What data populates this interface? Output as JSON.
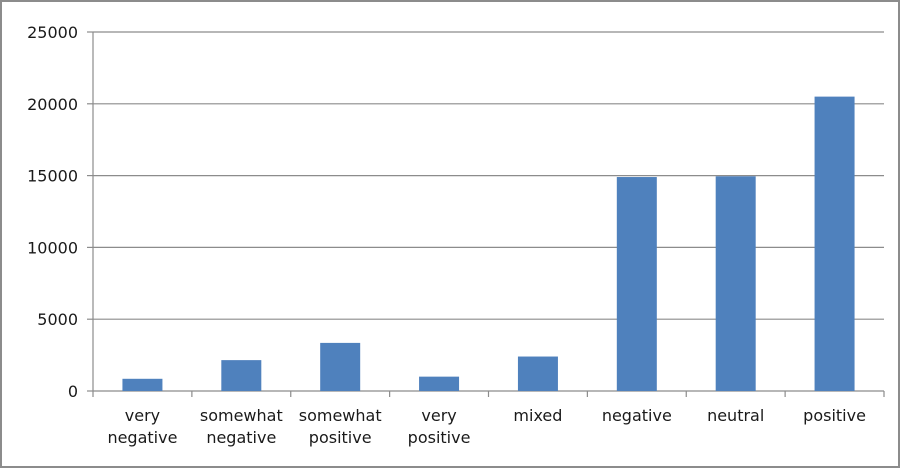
{
  "chart_data": {
    "type": "bar",
    "title": "",
    "xlabel": "",
    "ylabel": "",
    "categories": [
      [
        "very",
        "negative"
      ],
      [
        "somewhat",
        "negative"
      ],
      [
        "somewhat",
        "positive"
      ],
      [
        "very",
        "positive"
      ],
      [
        "mixed"
      ],
      [
        "negative"
      ],
      [
        "neutral"
      ],
      [
        "positive"
      ]
    ],
    "values": [
      850,
      2150,
      3350,
      1000,
      2400,
      14900,
      14950,
      20500
    ],
    "ylim": [
      0,
      25000
    ],
    "yticks": [
      "0",
      "5000",
      "10000",
      "15000",
      "20000",
      "25000"
    ],
    "grid": true,
    "legend": "none",
    "bar_color": "#4f81bd"
  }
}
